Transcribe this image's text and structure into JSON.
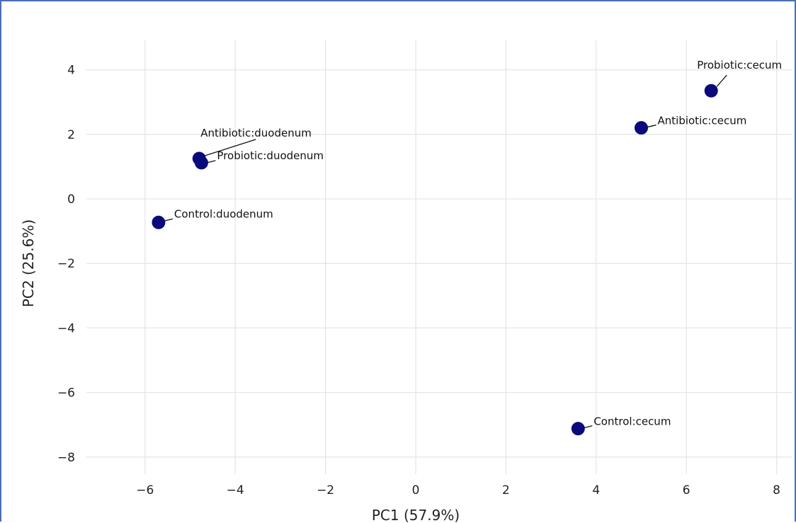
{
  "chart_data": {
    "type": "scatter",
    "xlabel": "PC1 (57.9%)",
    "ylabel": "PC2 (25.6%)",
    "xlim": [
      -7.2,
      8.0
    ],
    "ylim": [
      -8.9,
      4.9
    ],
    "grid": true,
    "x_ticks": [
      -6,
      -4,
      -2,
      0,
      2,
      4,
      6,
      8
    ],
    "y_ticks": [
      4,
      2,
      0,
      -2,
      -4,
      -6,
      -8
    ],
    "x_tick_labels": [
      "−6",
      "−4",
      "−2",
      "0",
      "2",
      "4",
      "6",
      "8"
    ],
    "y_tick_labels": [
      "4",
      "2",
      "0",
      "−2",
      "−4",
      "−6",
      "−8"
    ],
    "marker_color": "#0a0a7a",
    "points": [
      {
        "label": "Antibiotic:duodenum",
        "x": -4.8,
        "y": 1.25
      },
      {
        "label": "Probiotic:duodenum",
        "x": -4.75,
        "y": 1.12
      },
      {
        "label": "Control:duodenum",
        "x": -5.7,
        "y": -0.73
      },
      {
        "label": "Probiotic:cecum",
        "x": 6.55,
        "y": 3.35
      },
      {
        "label": "Antibiotic:cecum",
        "x": 5.0,
        "y": 2.2
      },
      {
        "label": "Control:cecum",
        "x": 3.6,
        "y": -7.12
      }
    ]
  }
}
